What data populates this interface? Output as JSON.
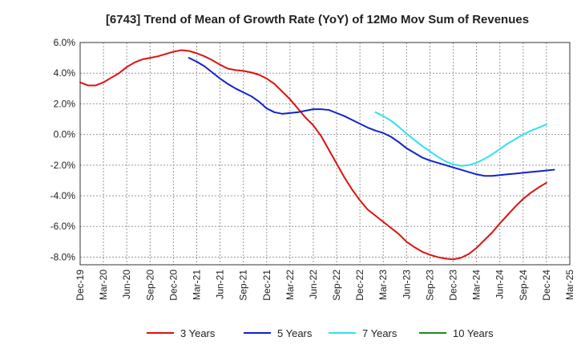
{
  "chart_data": {
    "type": "line",
    "title": "[6743]  Trend of Mean of Growth Rate (YoY) of 12Mo Mov Sum of Revenues",
    "xlabel": "",
    "ylabel": "",
    "ylim": [
      -8.5,
      6.0
    ],
    "y_ticks": [
      6.0,
      4.0,
      2.0,
      0.0,
      -2.0,
      -4.0,
      -6.0,
      -8.0
    ],
    "y_tick_labels": [
      "6.0%",
      "4.0%",
      "2.0%",
      "0.0%",
      "-2.0%",
      "-4.0%",
      "-6.0%",
      "-8.0%"
    ],
    "x_tick_labels": [
      "Dec-19",
      "Mar-20",
      "Jun-20",
      "Sep-20",
      "Dec-20",
      "Mar-21",
      "Jun-21",
      "Sep-21",
      "Dec-21",
      "Mar-22",
      "Jun-22",
      "Sep-22",
      "Dec-22",
      "Mar-23",
      "Jun-23",
      "Sep-23",
      "Dec-23",
      "Mar-24",
      "Jun-24",
      "Sep-24",
      "Dec-24",
      "Mar-25"
    ],
    "grid": true,
    "legend_position": "bottom",
    "series": [
      {
        "name": "3 Years",
        "color": "#dd1111",
        "start_index": 0,
        "values": [
          3.4,
          3.2,
          3.2,
          3.4,
          3.7,
          4.0,
          4.4,
          4.7,
          4.9,
          5.0,
          5.1,
          5.25,
          5.4,
          5.5,
          5.45,
          5.3,
          5.1,
          4.85,
          4.55,
          4.3,
          4.2,
          4.15,
          4.05,
          3.9,
          3.65,
          3.3,
          2.8,
          2.3,
          1.7,
          1.1,
          0.6,
          -0.1,
          -1.0,
          -1.9,
          -2.8,
          -3.6,
          -4.3,
          -4.9,
          -5.3,
          -5.7,
          -6.1,
          -6.5,
          -7.0,
          -7.35,
          -7.65,
          -7.85,
          -8.0,
          -8.1,
          -8.15,
          -8.05,
          -7.8,
          -7.4,
          -6.9,
          -6.4,
          -5.8,
          -5.25,
          -4.7,
          -4.2,
          -3.8,
          -3.45,
          -3.15
        ]
      },
      {
        "name": "5 Years",
        "color": "#1122cc",
        "start_index": 14,
        "values": [
          5.0,
          4.75,
          4.45,
          4.05,
          3.65,
          3.3,
          3.0,
          2.75,
          2.5,
          2.15,
          1.7,
          1.45,
          1.35,
          1.4,
          1.45,
          1.55,
          1.65,
          1.65,
          1.6,
          1.4,
          1.2,
          0.95,
          0.7,
          0.45,
          0.25,
          0.1,
          -0.15,
          -0.5,
          -0.9,
          -1.2,
          -1.5,
          -1.7,
          -1.85,
          -2.0,
          -2.15,
          -2.3,
          -2.45,
          -2.6,
          -2.7,
          -2.7,
          -2.65,
          -2.6,
          -2.55,
          -2.5,
          -2.45,
          -2.4,
          -2.35,
          -2.3
        ]
      },
      {
        "name": "7 Years",
        "color": "#33e0ee",
        "start_index": 38,
        "values": [
          1.45,
          1.2,
          0.9,
          0.5,
          0.05,
          -0.35,
          -0.75,
          -1.1,
          -1.45,
          -1.75,
          -1.95,
          -2.05,
          -2.0,
          -1.85,
          -1.6,
          -1.3,
          -0.95,
          -0.6,
          -0.3,
          0.0,
          0.25,
          0.45,
          0.65
        ]
      },
      {
        "name": "10 Years",
        "color": "#228822",
        "start_index": 0,
        "values": []
      }
    ]
  }
}
